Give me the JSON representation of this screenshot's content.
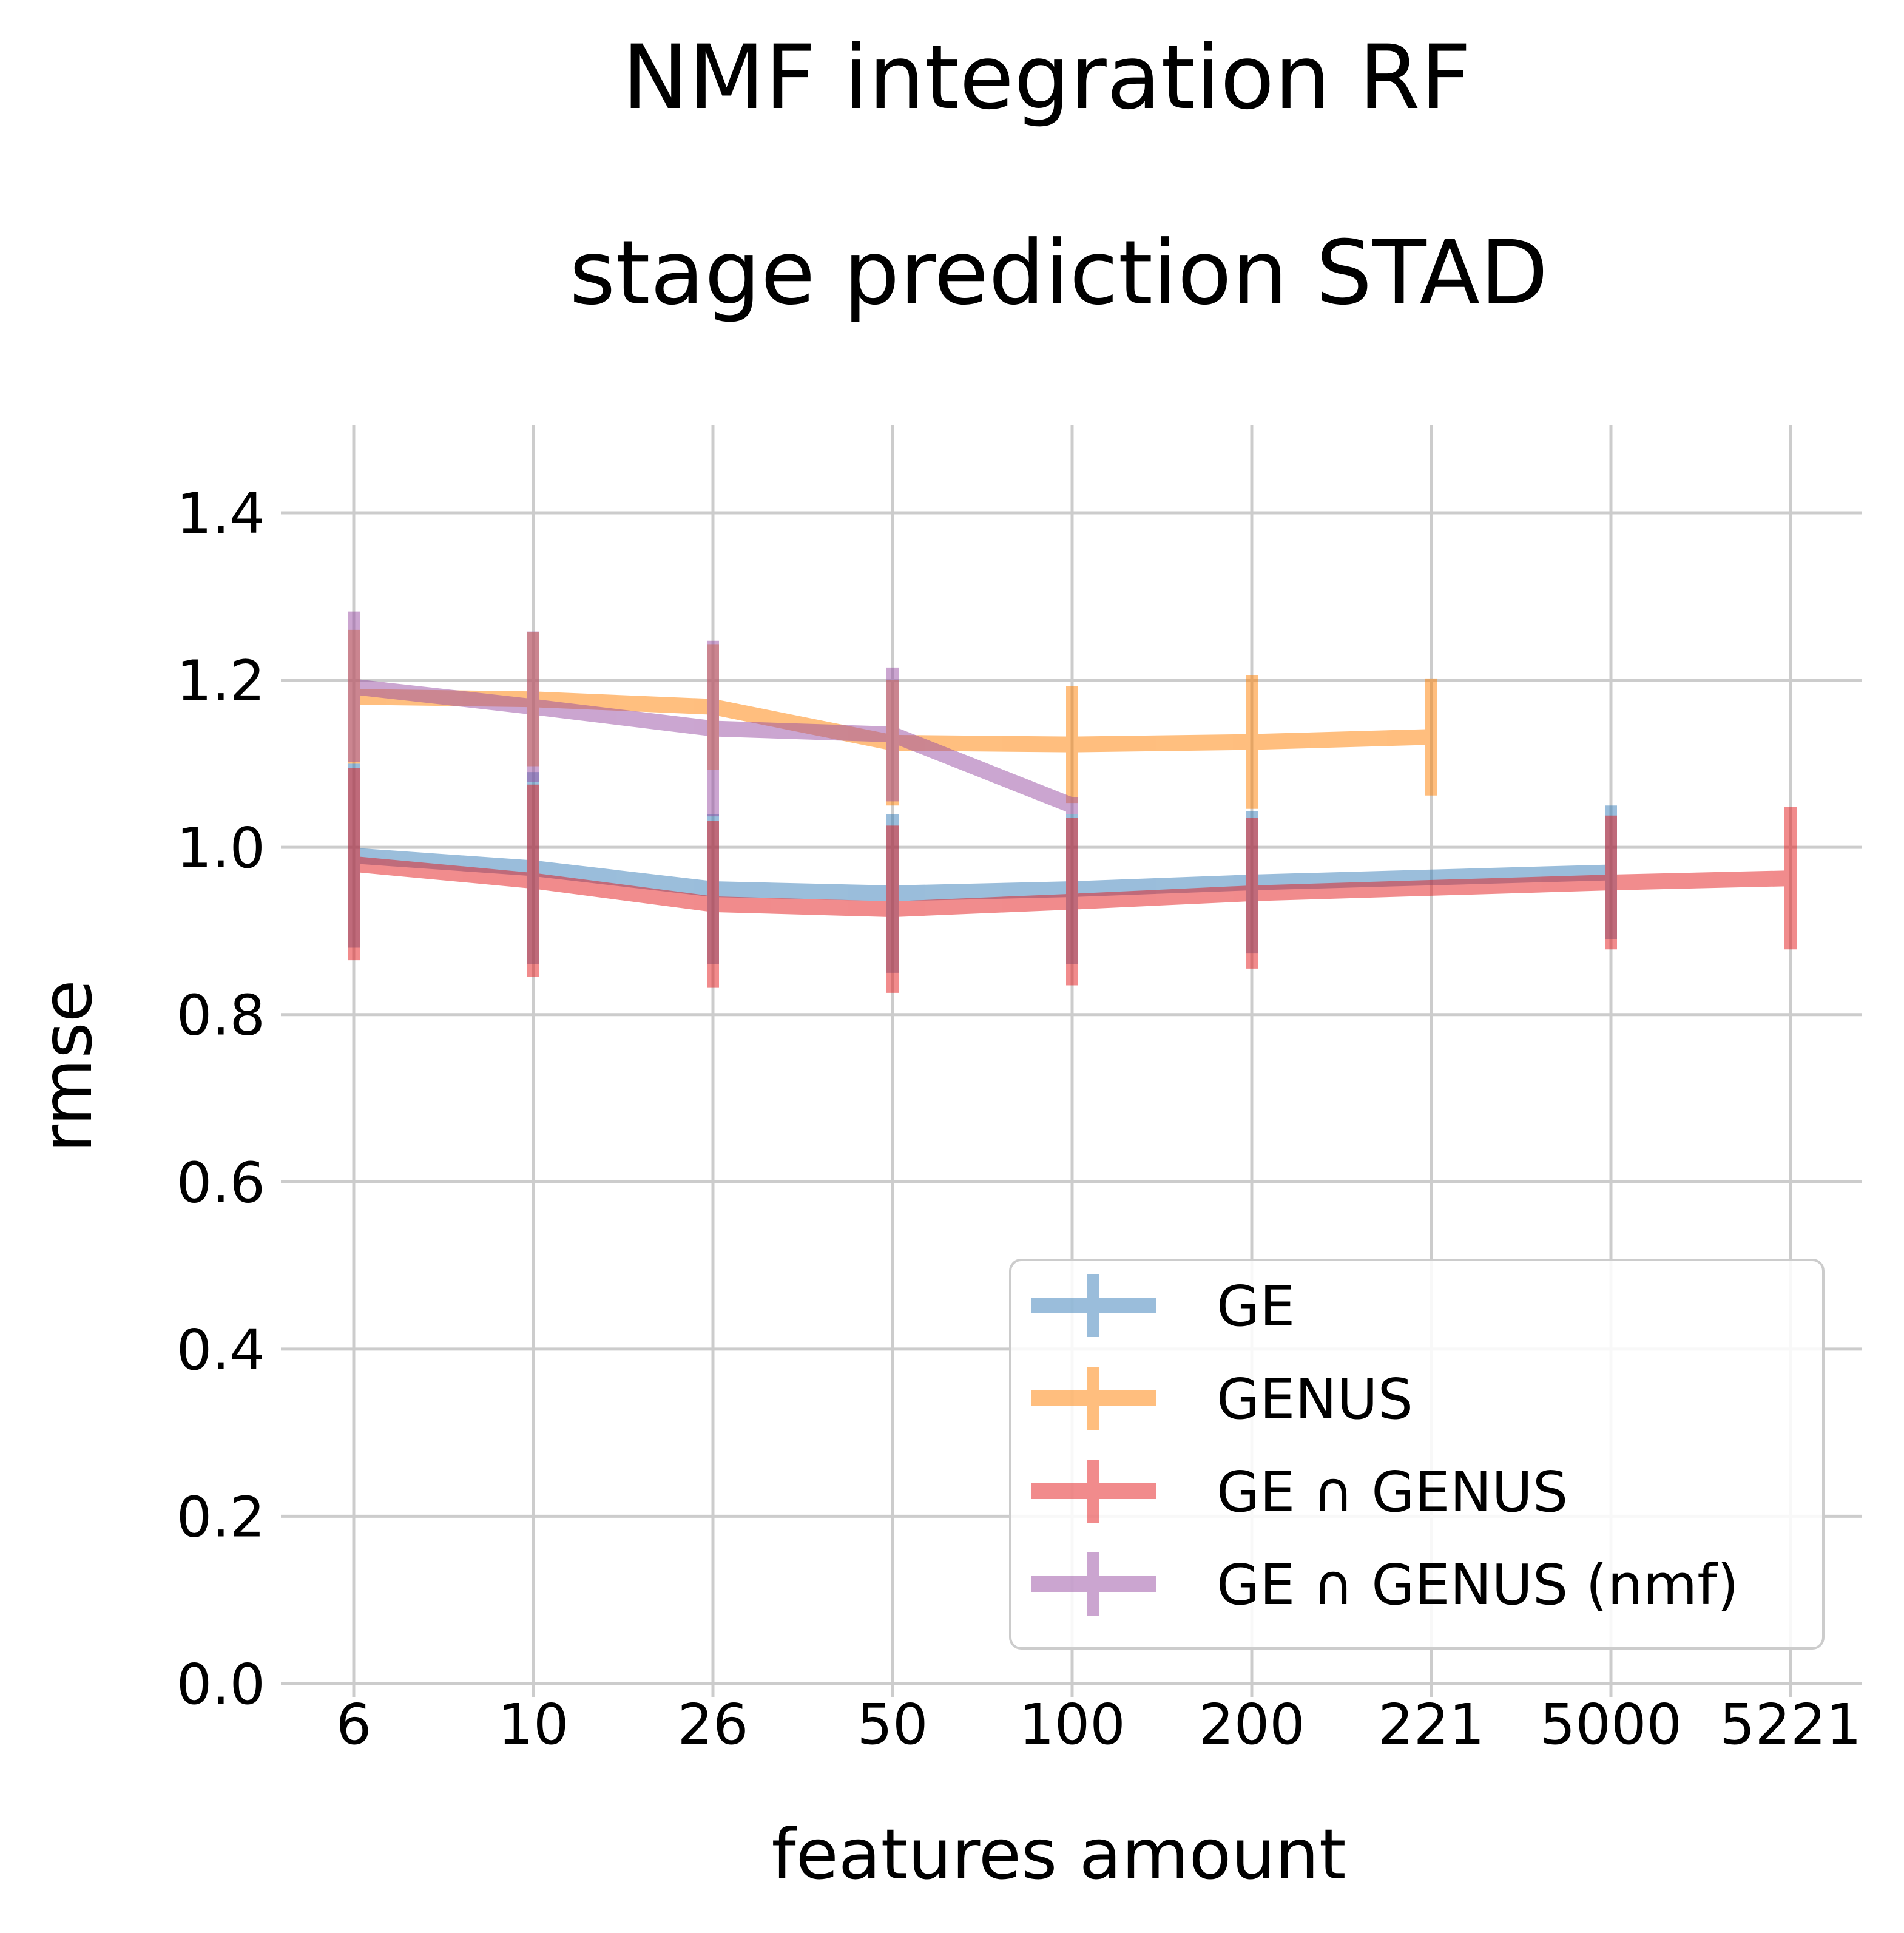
{
  "chart_data": {
    "type": "line",
    "title": "NMF integration RF",
    "subtitle": "stage prediction STAD",
    "xlabel": "features amount",
    "ylabel": "rmse",
    "categories": [
      "6",
      "10",
      "26",
      "50",
      "100",
      "200",
      "221",
      "5000",
      "5221"
    ],
    "ylim": [
      0.0,
      1.5
    ],
    "yticks": [
      "0.0",
      "0.2",
      "0.4",
      "0.6",
      "0.8",
      "1.0",
      "1.2",
      "1.4"
    ],
    "grid": true,
    "legend_position": "bottom-right",
    "error_bars": true,
    "series": [
      {
        "name": "GE",
        "color": "#377eb8",
        "points": [
          {
            "x": "6",
            "y": 0.99,
            "err": 0.11
          },
          {
            "x": "10",
            "y": 0.975,
            "err": 0.115
          },
          {
            "x": "26",
            "y": 0.95,
            "err": 0.09
          },
          {
            "x": "50",
            "y": 0.945,
            "err": 0.095
          },
          {
            "x": "100",
            "y": 0.95,
            "err": 0.09
          },
          {
            "x": "200",
            "y": 0.958,
            "err": 0.085
          },
          {
            "x": "5000",
            "y": 0.97,
            "err": 0.08
          }
        ]
      },
      {
        "name": "GENUS",
        "color": "#ff7f00",
        "points": [
          {
            "x": "6",
            "y": 1.18,
            "err": 0.08
          },
          {
            "x": "10",
            "y": 1.177,
            "err": 0.08
          },
          {
            "x": "26",
            "y": 1.168,
            "err": 0.075
          },
          {
            "x": "50",
            "y": 1.125,
            "err": 0.075
          },
          {
            "x": "100",
            "y": 1.123,
            "err": 0.07
          },
          {
            "x": "200",
            "y": 1.126,
            "err": 0.08
          },
          {
            "x": "221",
            "y": 1.132,
            "err": 0.07
          }
        ]
      },
      {
        "name": "GE ∩ GENUS",
        "color": "#e41a1c",
        "points": [
          {
            "x": "6",
            "y": 0.98,
            "err": 0.115
          },
          {
            "x": "10",
            "y": 0.96,
            "err": 0.115
          },
          {
            "x": "26",
            "y": 0.932,
            "err": 0.1
          },
          {
            "x": "50",
            "y": 0.926,
            "err": 0.1
          },
          {
            "x": "100",
            "y": 0.935,
            "err": 0.1
          },
          {
            "x": "200",
            "y": 0.945,
            "err": 0.09
          },
          {
            "x": "5000",
            "y": 0.958,
            "err": 0.08
          },
          {
            "x": "5221",
            "y": 0.963,
            "err": 0.085
          }
        ]
      },
      {
        "name": "GE ∩ GENUS (nmf)",
        "color": "#984ea3",
        "points": [
          {
            "x": "6",
            "y": 1.192,
            "err": 0.09
          },
          {
            "x": "10",
            "y": 1.168,
            "err": 0.09
          },
          {
            "x": "26",
            "y": 1.142,
            "err": 0.105
          },
          {
            "x": "50",
            "y": 1.135,
            "err": 0.08
          },
          {
            "x": "100",
            "y": 1.05,
            "err": 0.01
          }
        ]
      }
    ]
  }
}
